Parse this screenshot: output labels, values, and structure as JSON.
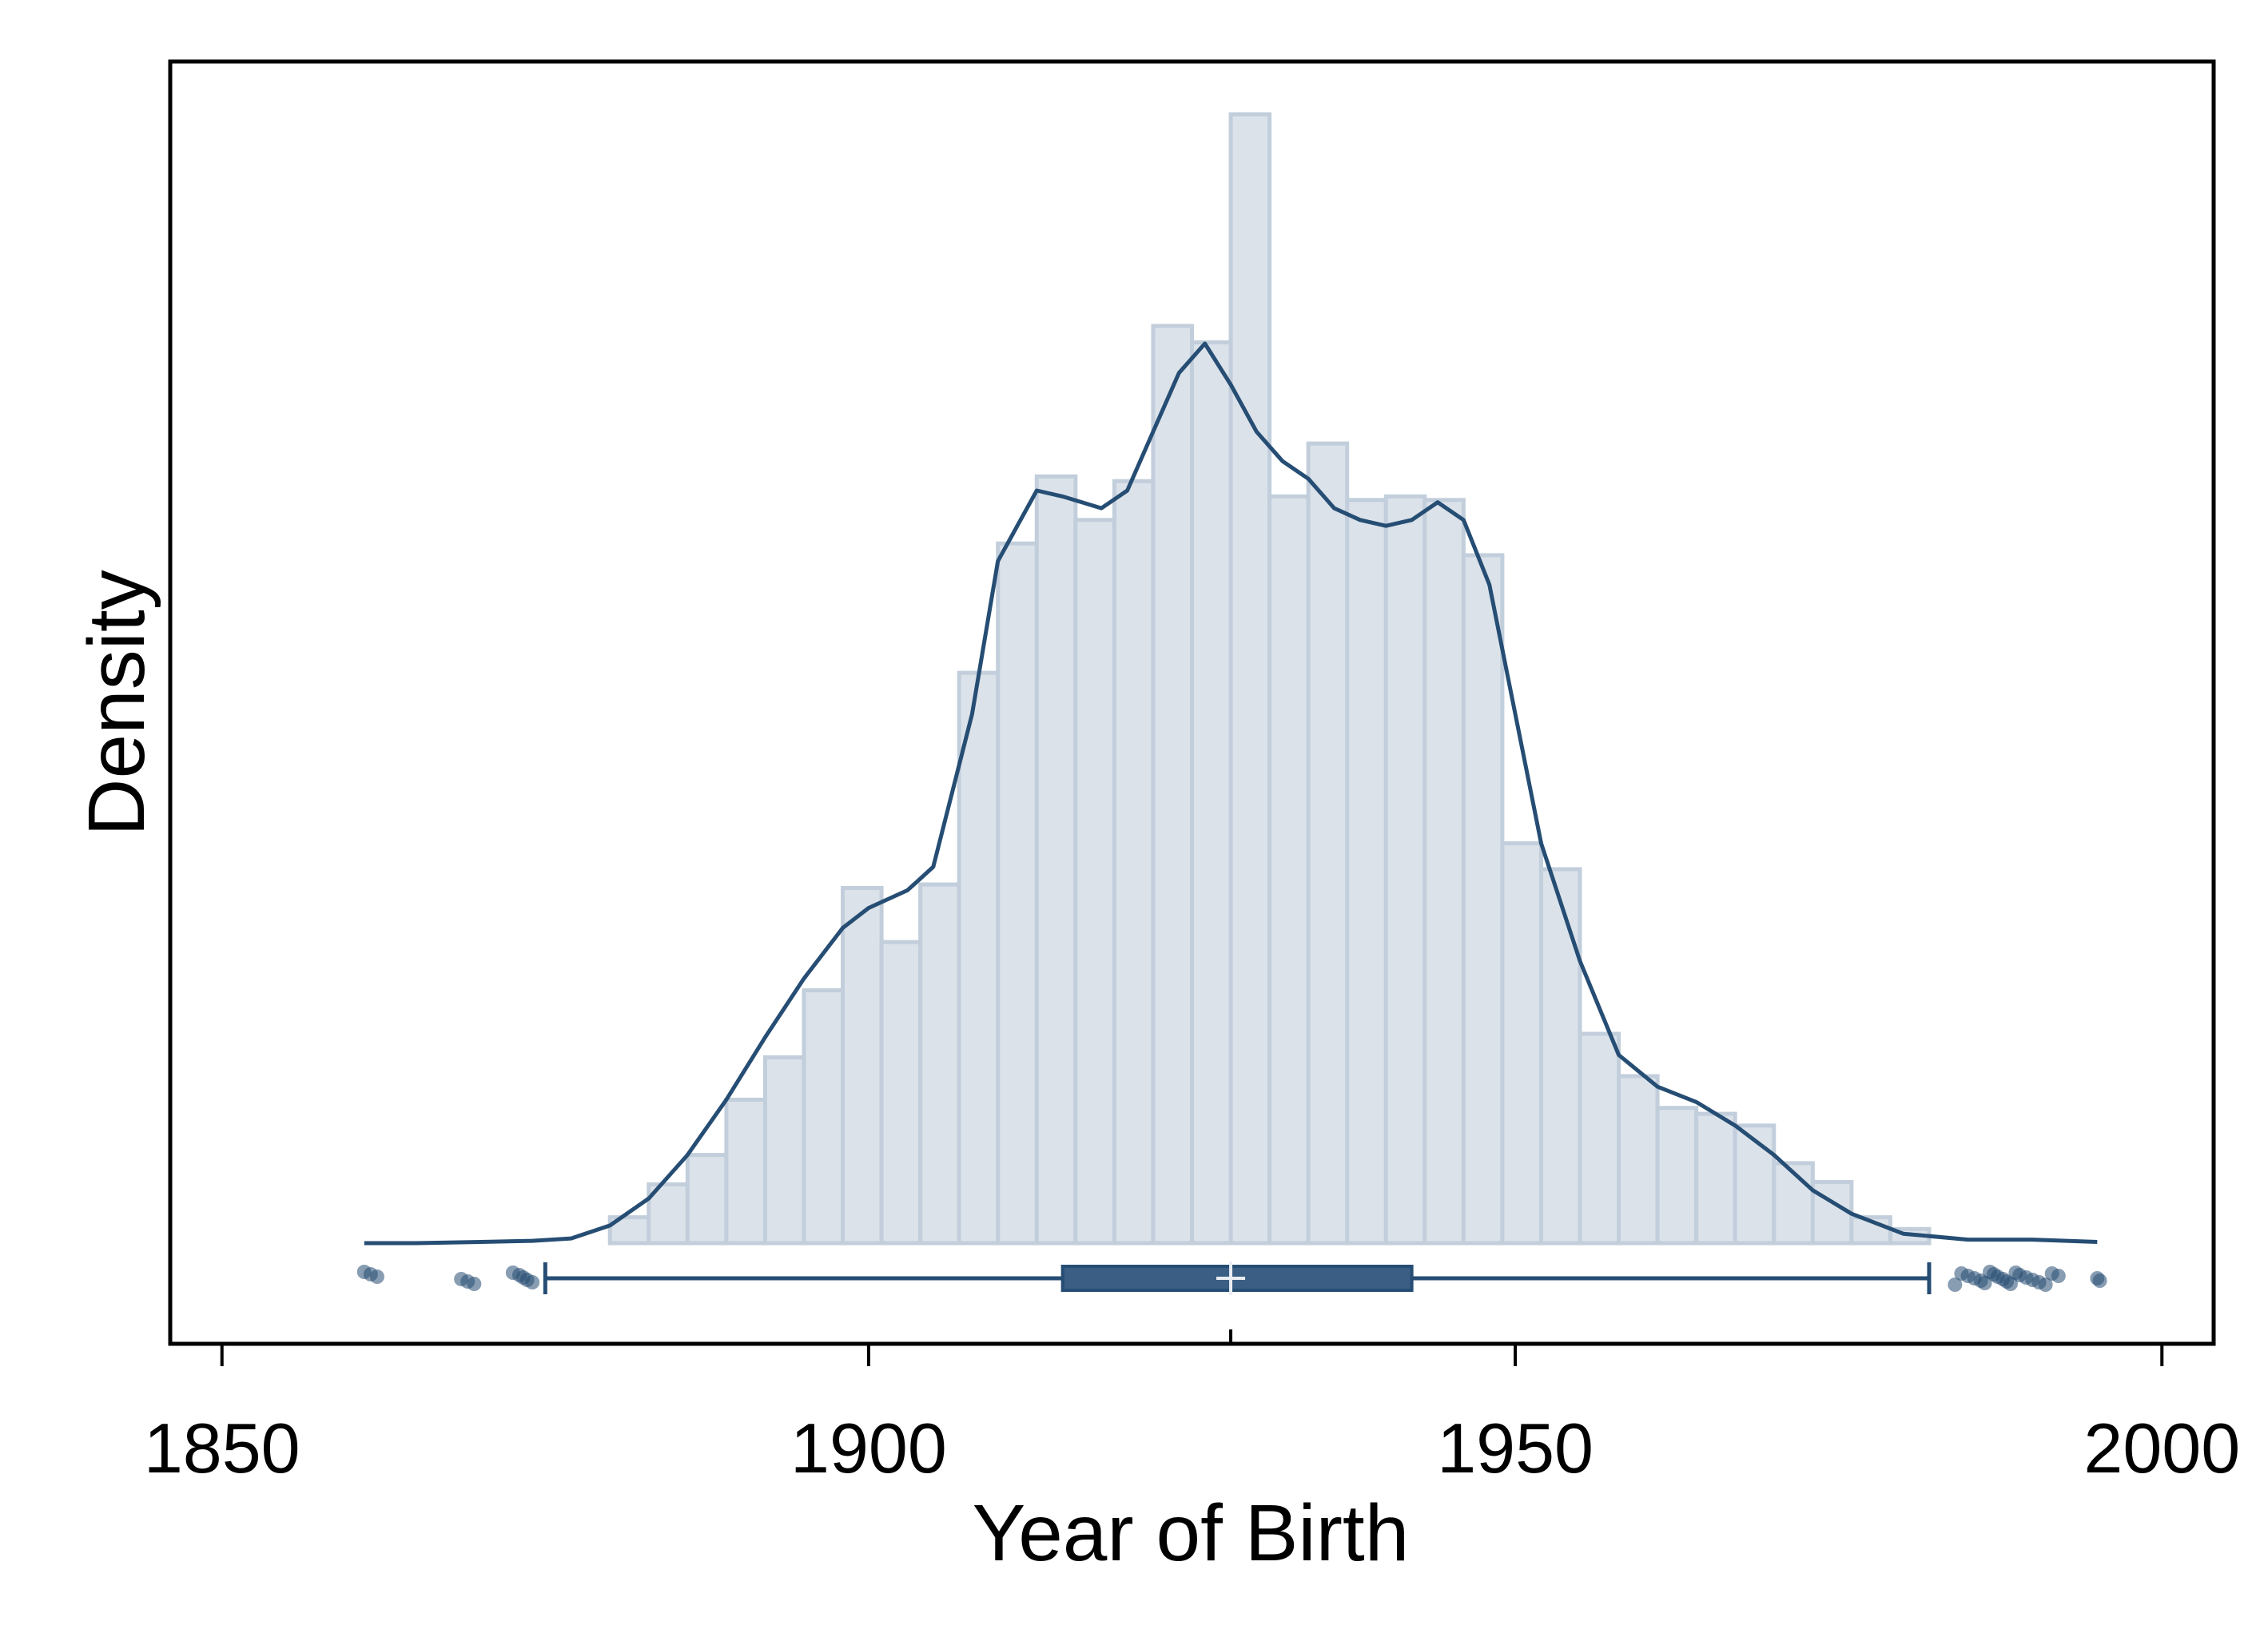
{
  "chart_data": {
    "type": "bar",
    "title": "",
    "xlabel": "Year of Birth",
    "ylabel": "Density",
    "xlim": [
      1846,
      2004
    ],
    "x_ticks": [
      1850,
      1900,
      1950,
      2000
    ],
    "y_ticks": [],
    "grid": false,
    "colors": {
      "bar_fill": "#dbe2ea",
      "bar_stroke": "#c2cedb",
      "line": "#264d73",
      "box": "#3b5f84",
      "frame": "#000000"
    },
    "histogram": {
      "bin_width": 3,
      "bins": [
        {
          "x0": 1880,
          "x1": 1883,
          "density": 0.0022
        },
        {
          "x0": 1883,
          "x1": 1886,
          "density": 0.005
        },
        {
          "x0": 1886,
          "x1": 1889,
          "density": 0.0075
        },
        {
          "x0": 1889,
          "x1": 1892,
          "density": 0.0122
        },
        {
          "x0": 1892,
          "x1": 1895,
          "density": 0.0158
        },
        {
          "x0": 1895,
          "x1": 1898,
          "density": 0.0215
        },
        {
          "x0": 1898,
          "x1": 1901,
          "density": 0.0302
        },
        {
          "x0": 1901,
          "x1": 1904,
          "density": 0.0256
        },
        {
          "x0": 1904,
          "x1": 1907,
          "density": 0.0305
        },
        {
          "x0": 1907,
          "x1": 1910,
          "density": 0.0485
        },
        {
          "x0": 1910,
          "x1": 1913,
          "density": 0.0595
        },
        {
          "x0": 1913,
          "x1": 1916,
          "density": 0.0652
        },
        {
          "x0": 1916,
          "x1": 1919,
          "density": 0.0615
        },
        {
          "x0": 1919,
          "x1": 1922,
          "density": 0.0648
        },
        {
          "x0": 1922,
          "x1": 1925,
          "density": 0.078
        },
        {
          "x0": 1925,
          "x1": 1928,
          "density": 0.0766
        },
        {
          "x0": 1928,
          "x1": 1931,
          "density": 0.096
        },
        {
          "x0": 1931,
          "x1": 1934,
          "density": 0.0635
        },
        {
          "x0": 1934,
          "x1": 1937,
          "density": 0.068
        },
        {
          "x0": 1937,
          "x1": 1940,
          "density": 0.0632
        },
        {
          "x0": 1940,
          "x1": 1943,
          "density": 0.0635
        },
        {
          "x0": 1943,
          "x1": 1946,
          "density": 0.0632
        },
        {
          "x0": 1946,
          "x1": 1949,
          "density": 0.0585
        },
        {
          "x0": 1949,
          "x1": 1952,
          "density": 0.034
        },
        {
          "x0": 1952,
          "x1": 1955,
          "density": 0.0318
        },
        {
          "x0": 1955,
          "x1": 1958,
          "density": 0.0178
        },
        {
          "x0": 1958,
          "x1": 1961,
          "density": 0.0142
        },
        {
          "x0": 1961,
          "x1": 1964,
          "density": 0.0115
        },
        {
          "x0": 1964,
          "x1": 1967,
          "density": 0.011
        },
        {
          "x0": 1967,
          "x1": 1970,
          "density": 0.01
        },
        {
          "x0": 1970,
          "x1": 1973,
          "density": 0.0068
        },
        {
          "x0": 1973,
          "x1": 1976,
          "density": 0.0052
        },
        {
          "x0": 1976,
          "x1": 1979,
          "density": 0.0022
        },
        {
          "x0": 1979,
          "x1": 1982,
          "density": 0.0012
        }
      ]
    },
    "density_curve": {
      "x": [
        1861,
        1865,
        1870,
        1874,
        1877,
        1880,
        1883,
        1886,
        1889,
        1892,
        1895,
        1898,
        1900,
        1903,
        1905,
        1908,
        1910,
        1913,
        1915,
        1918,
        1920,
        1922,
        1924,
        1926,
        1928,
        1930,
        1932,
        1934,
        1936,
        1938,
        1940,
        1942,
        1944,
        1946,
        1948,
        1950,
        1952,
        1955,
        1958,
        1961,
        1964,
        1967,
        1970,
        1973,
        1976,
        1980,
        1985,
        1990,
        1995
      ],
      "y": [
        0.0,
        0.0,
        0.0001,
        0.0002,
        0.0004,
        0.0015,
        0.0038,
        0.0075,
        0.0122,
        0.0175,
        0.0225,
        0.0268,
        0.0285,
        0.03,
        0.032,
        0.045,
        0.058,
        0.064,
        0.0635,
        0.0625,
        0.064,
        0.069,
        0.074,
        0.0765,
        0.073,
        0.069,
        0.0665,
        0.065,
        0.0625,
        0.0615,
        0.061,
        0.0615,
        0.063,
        0.0615,
        0.056,
        0.045,
        0.034,
        0.024,
        0.016,
        0.0133,
        0.012,
        0.01,
        0.0075,
        0.0045,
        0.0025,
        0.0008,
        0.0003,
        0.0003,
        0.0001
      ]
    },
    "boxplot": {
      "whisker_low": 1875,
      "q1": 1915,
      "median": 1928,
      "mean": 1928,
      "q3": 1942,
      "whisker_high": 1982,
      "outliers": [
        1861,
        1861.5,
        1862,
        1868.5,
        1869,
        1869.5,
        1872.5,
        1873,
        1873.3,
        1873.6,
        1874,
        1984,
        1984.5,
        1985,
        1985.5,
        1986,
        1986.3,
        1986.7,
        1987,
        1987.3,
        1987.7,
        1988,
        1988.3,
        1988.7,
        1989,
        1989.5,
        1990,
        1990.5,
        1991,
        1991.5,
        1992,
        1995,
        1995.2
      ]
    }
  }
}
